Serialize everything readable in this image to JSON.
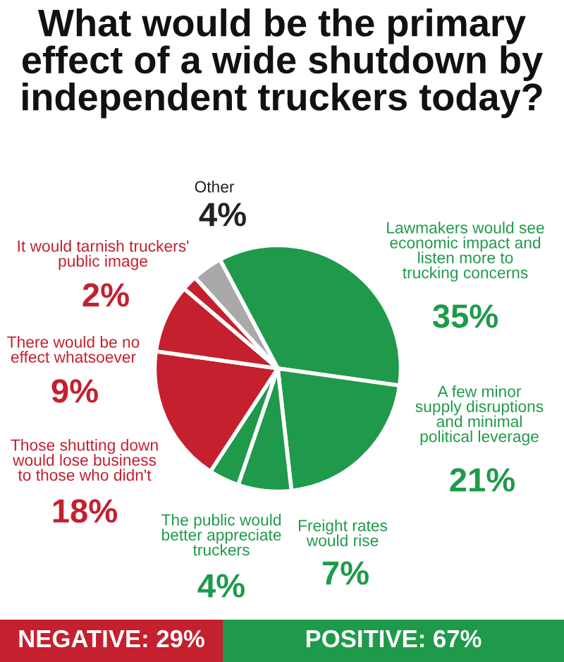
{
  "chart_data": {
    "type": "pie",
    "title": "What would be the primary\neffect of a wide shutdown by\nindependent truckers today?",
    "categories": [
      "Lawmakers would see\neconomic impact and\nlisten more to\ntrucking concerns",
      "A few minor\nsupply disruptions\nand minimal\npolitical leverage",
      "Freight rates\nwould rise",
      "The public would\nbetter appreciate\ntruckers",
      "Those shutting down\nwould lose business\nto those who didn't",
      "There would be no\neffect whatsoever",
      "It would tarnish truckers'\npublic image",
      "Other"
    ],
    "values": [
      35,
      21,
      7,
      4,
      18,
      9,
      2,
      4
    ],
    "colors": [
      "#1f9a4b",
      "#1f9a4b",
      "#1f9a4b",
      "#1f9a4b",
      "#c4202e",
      "#c4202e",
      "#c4202e",
      "#a9a9a9"
    ],
    "value_labels": [
      "35%",
      "21%",
      "7%",
      "4%",
      "18%",
      "9%",
      "2%",
      "4%"
    ],
    "annotations": [
      "NEGATIVE: 29%",
      "POSITIVE: 67%"
    ]
  }
}
